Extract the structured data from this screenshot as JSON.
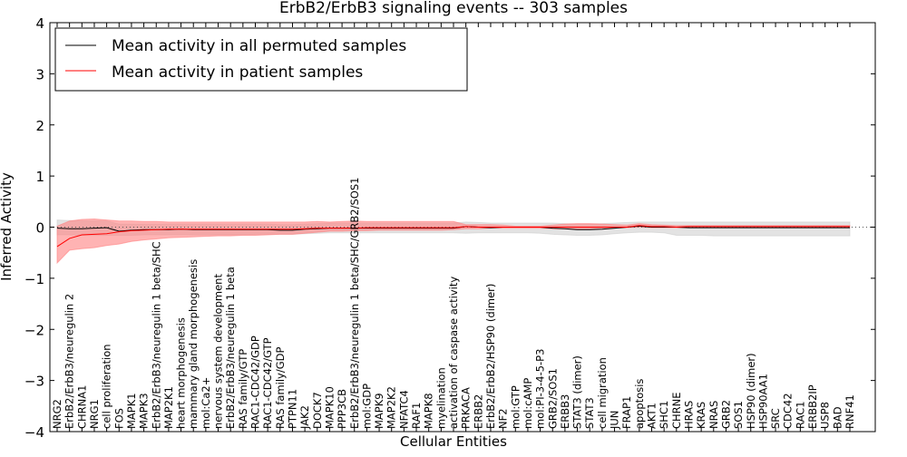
{
  "chart_data": {
    "type": "line",
    "title": "ErbB2/ErbB3 signaling events -- 303 samples",
    "xlabel": "Cellular Entities",
    "ylabel": "Inferred Activity",
    "ylim": [
      -4,
      4
    ],
    "yticks": [
      -4,
      -3,
      -2,
      -1,
      0,
      1,
      2,
      3,
      4
    ],
    "legend_position": "top-left",
    "categories": [
      "NRG2",
      "ErbB2/ErbB3/neuregulin 2",
      "CHRNA1",
      "NRG1",
      "cell proliferation",
      "FOS",
      "MAPK1",
      "MAPK3",
      "ErbB2/ErbB3/neuregulin 1 beta/SHC",
      "MAP2K1",
      "heart morphogenesis",
      "mammary gland morphogenesis",
      "mol:Ca2+",
      "nervous system development",
      "ErbB2/ErbB3/neuregulin 1 beta",
      "RAS family/GTP",
      "RAC1-CDC42/GDP",
      "RAC1-CDC42/GTP",
      "RAS family/GDP",
      "PTPN11",
      "JAK2",
      "DOCK7",
      "MAPK10",
      "PPP3CB",
      "ErbB2/ErbB3/neuregulin 1 beta/SHC/GRB2/SOS1",
      "mol:GDP",
      "MAPK9",
      "MAP2K2",
      "NFATC4",
      "RAF1",
      "MAPK8",
      "myelination",
      "activation of caspase activity",
      "PRKACA",
      "ERBB2",
      "ErbB2/ErbB2/HSP90 (dimer)",
      "NF2",
      "mol:GTP",
      "mol:cAMP",
      "mol:PI-3-4-5-P3",
      "GRB2/SOS1",
      "ERBB3",
      "STAT3 (dimer)",
      "STAT3",
      "cell migration",
      "JUN",
      "FRAP1",
      "apoptosis",
      "AKT1",
      "SHC1",
      "CHRNE",
      "HRAS",
      "KRAS",
      "NRAS",
      "GRB2",
      "SOS1",
      "HSP90 (dimer)",
      "HSP90AA1",
      "SRC",
      "CDC42",
      "RAC1",
      "ERBB2IP",
      "USP8",
      "BAD",
      "RNF41"
    ],
    "series": [
      {
        "name": "Mean activity in all permuted samples",
        "color": "#000000",
        "values": [
          -0.02,
          -0.03,
          -0.03,
          -0.02,
          -0.01,
          -0.08,
          -0.06,
          -0.05,
          -0.05,
          -0.05,
          -0.04,
          -0.05,
          -0.05,
          -0.05,
          -0.05,
          -0.05,
          -0.05,
          -0.05,
          -0.06,
          -0.06,
          -0.04,
          -0.03,
          -0.02,
          -0.02,
          -0.02,
          -0.02,
          -0.02,
          -0.02,
          -0.02,
          -0.02,
          -0.02,
          -0.02,
          -0.02,
          0.01,
          0.0,
          -0.01,
          0.0,
          0.0,
          0.0,
          0.0,
          -0.02,
          -0.03,
          -0.05,
          -0.05,
          -0.04,
          -0.02,
          0.0,
          0.02,
          0.0,
          0.0,
          0.0,
          -0.01,
          -0.01,
          -0.01,
          -0.01,
          -0.01,
          -0.01,
          -0.01,
          -0.01,
          -0.01,
          -0.01,
          -0.01,
          -0.01,
          -0.01,
          -0.01
        ],
        "lower": [
          -0.15,
          -0.15,
          -0.16,
          -0.16,
          -0.16,
          -0.16,
          -0.16,
          -0.15,
          -0.15,
          -0.15,
          -0.15,
          -0.15,
          -0.15,
          -0.15,
          -0.15,
          -0.15,
          -0.14,
          -0.14,
          -0.14,
          -0.14,
          -0.13,
          -0.12,
          -0.11,
          -0.11,
          -0.11,
          -0.11,
          -0.11,
          -0.11,
          -0.11,
          -0.11,
          -0.11,
          -0.11,
          -0.11,
          -0.12,
          -0.11,
          -0.11,
          -0.11,
          -0.11,
          -0.11,
          -0.12,
          -0.14,
          -0.15,
          -0.16,
          -0.16,
          -0.15,
          -0.13,
          -0.11,
          -0.1,
          -0.1,
          -0.11,
          -0.16,
          -0.16,
          -0.16,
          -0.17,
          -0.17,
          -0.17,
          -0.17,
          -0.17,
          -0.17,
          -0.17,
          -0.17,
          -0.17,
          -0.17,
          -0.17,
          -0.17
        ],
        "upper": [
          0.14,
          0.13,
          0.12,
          0.12,
          0.12,
          0.06,
          0.06,
          0.06,
          0.06,
          0.06,
          0.06,
          0.06,
          0.06,
          0.06,
          0.06,
          0.06,
          0.06,
          0.06,
          0.05,
          0.05,
          0.06,
          0.07,
          0.08,
          0.08,
          0.08,
          0.08,
          0.08,
          0.08,
          0.08,
          0.08,
          0.08,
          0.08,
          0.08,
          0.1,
          0.09,
          0.08,
          0.08,
          0.08,
          0.08,
          0.08,
          0.08,
          0.07,
          0.06,
          0.06,
          0.07,
          0.08,
          0.09,
          0.1,
          0.1,
          0.1,
          0.1,
          0.1,
          0.1,
          0.1,
          0.1,
          0.1,
          0.1,
          0.1,
          0.1,
          0.1,
          0.1,
          0.1,
          0.1,
          0.1,
          0.1
        ]
      },
      {
        "name": "Mean activity in patient samples",
        "color": "#ff0000",
        "values": [
          -0.38,
          -0.22,
          -0.15,
          -0.14,
          -0.13,
          -0.09,
          -0.07,
          -0.06,
          -0.05,
          -0.04,
          -0.04,
          -0.04,
          -0.04,
          -0.04,
          -0.04,
          -0.04,
          -0.04,
          -0.04,
          -0.04,
          -0.04,
          -0.03,
          -0.02,
          -0.02,
          -0.02,
          -0.02,
          -0.01,
          -0.01,
          -0.01,
          -0.01,
          -0.01,
          -0.01,
          -0.01,
          -0.01,
          0.01,
          0.0,
          0.0,
          0.0,
          0.0,
          0.0,
          0.0,
          0.0,
          0.0,
          0.0,
          0.0,
          0.0,
          0.0,
          0.0,
          0.03,
          0.01,
          0.01,
          0.0,
          0.01,
          0.01,
          0.01,
          0.01,
          0.01,
          0.01,
          0.01,
          0.01,
          0.01,
          0.01,
          0.01,
          0.01,
          0.01,
          0.01
        ],
        "lower": [
          -0.7,
          -0.45,
          -0.42,
          -0.4,
          -0.36,
          -0.33,
          -0.28,
          -0.25,
          -0.23,
          -0.21,
          -0.2,
          -0.19,
          -0.18,
          -0.17,
          -0.17,
          -0.16,
          -0.16,
          -0.15,
          -0.14,
          -0.14,
          -0.12,
          -0.1,
          -0.08,
          -0.08,
          -0.07,
          -0.07,
          -0.06,
          -0.06,
          -0.06,
          -0.06,
          -0.06,
          -0.06,
          -0.05,
          -0.03,
          -0.03,
          -0.02,
          -0.02,
          -0.02,
          -0.02,
          -0.02,
          -0.03,
          -0.03,
          -0.03,
          -0.03,
          -0.02,
          -0.02,
          -0.01,
          0.0,
          -0.01,
          -0.01,
          -0.01,
          -0.01,
          -0.01,
          -0.01,
          -0.01,
          -0.01,
          -0.01,
          -0.01,
          -0.01,
          -0.01,
          -0.01,
          -0.01,
          -0.01,
          -0.01,
          -0.01
        ],
        "upper": [
          0.02,
          0.12,
          0.15,
          0.16,
          0.14,
          0.12,
          0.12,
          0.11,
          0.11,
          0.1,
          0.1,
          0.1,
          0.1,
          0.1,
          0.1,
          0.1,
          0.1,
          0.1,
          0.1,
          0.1,
          0.1,
          0.11,
          0.1,
          0.11,
          0.12,
          0.11,
          0.11,
          0.11,
          0.11,
          0.11,
          0.11,
          0.11,
          0.11,
          0.05,
          0.05,
          0.05,
          0.04,
          0.02,
          0.02,
          0.02,
          0.04,
          0.06,
          0.07,
          0.07,
          0.06,
          0.05,
          0.04,
          0.07,
          0.05,
          0.04,
          0.03,
          0.03,
          0.03,
          0.03,
          0.03,
          0.03,
          0.03,
          0.03,
          0.03,
          0.03,
          0.03,
          0.03,
          0.03,
          0.03,
          0.03
        ]
      }
    ]
  }
}
